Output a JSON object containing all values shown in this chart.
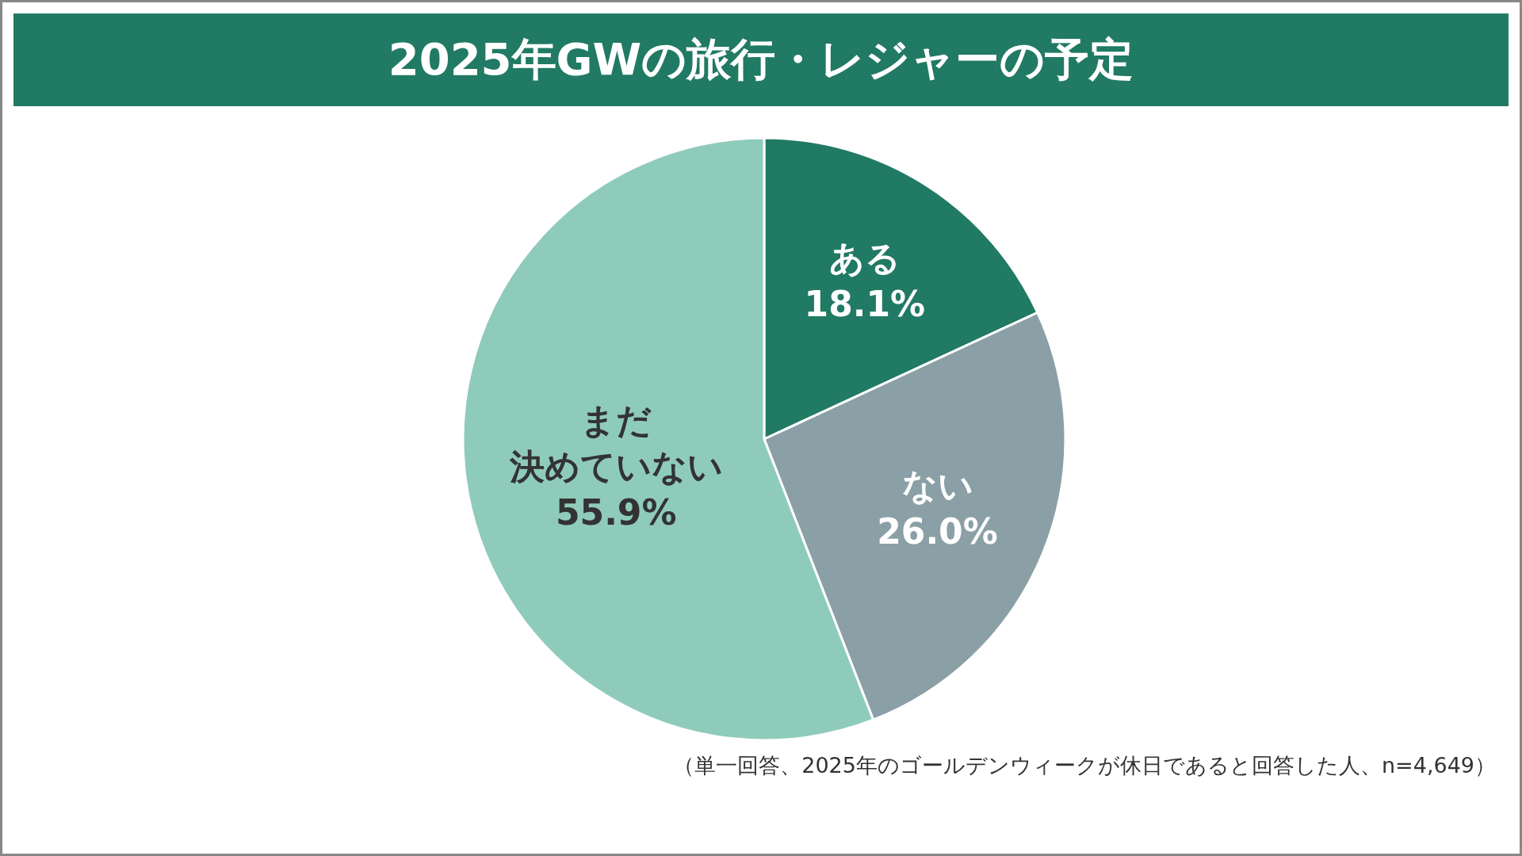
{
  "chart_data": {
    "type": "pie",
    "title": "2025年GWの旅行・レジャーの予定",
    "categories": [
      "ある",
      "ない",
      "まだ決めていない"
    ],
    "values": [
      18.1,
      26.0,
      55.9
    ],
    "colors": [
      "#217a63",
      "#8aa0a6",
      "#8fcbbb"
    ],
    "value_labels": [
      "18.1%",
      "26.0%",
      "55.9%"
    ],
    "annotations": [
      "（単一回答、2025年のゴールデンウィークが休日であると回答した人、n=4,649）"
    ]
  }
}
